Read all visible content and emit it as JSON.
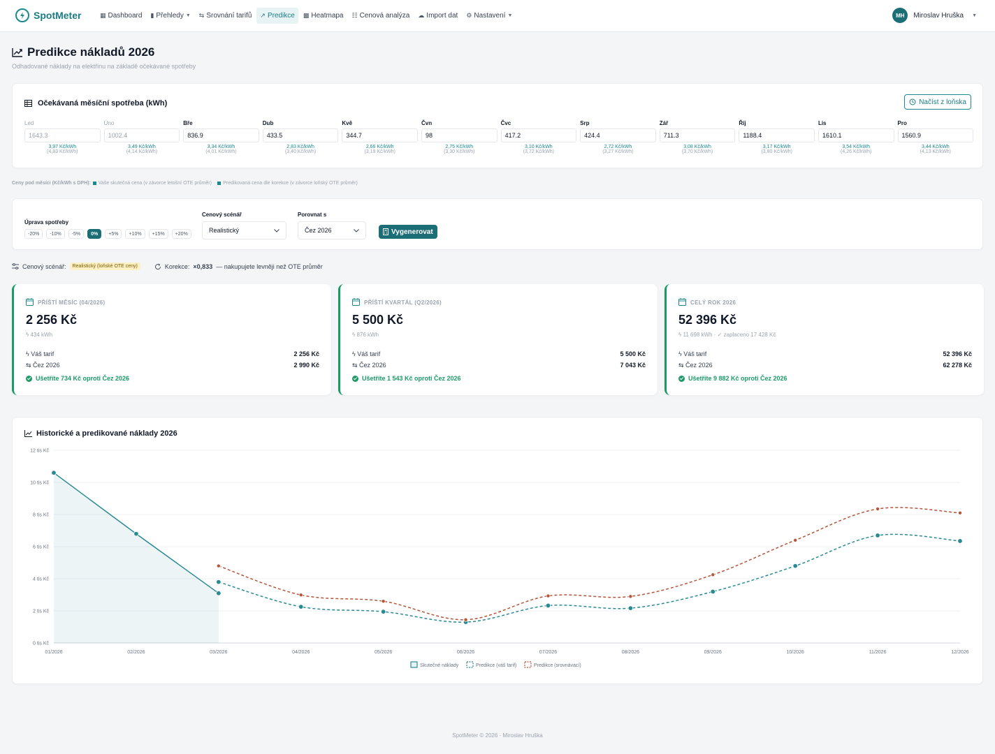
{
  "app": {
    "name": "SpotMeter"
  },
  "nav": {
    "items": [
      {
        "label": "Dashboard",
        "icon": "dashboard-icon",
        "glyph": "▦",
        "active": false,
        "dropdown": false
      },
      {
        "label": "Přehledy",
        "icon": "bar-chart-icon",
        "glyph": "▮",
        "active": false,
        "dropdown": true
      },
      {
        "label": "Srovnání tarifů",
        "icon": "compare-icon",
        "glyph": "⇆",
        "active": false,
        "dropdown": false
      },
      {
        "label": "Predikce",
        "icon": "trend-icon",
        "glyph": "↗",
        "active": true,
        "dropdown": false
      },
      {
        "label": "Heatmapa",
        "icon": "grid-icon",
        "glyph": "▩",
        "active": false,
        "dropdown": false
      },
      {
        "label": "Cenová analýza",
        "icon": "analysis-icon",
        "glyph": "☷",
        "active": false,
        "dropdown": false
      },
      {
        "label": "Import dat",
        "icon": "cloud-upload-icon",
        "glyph": "☁",
        "active": false,
        "dropdown": false
      },
      {
        "label": "Nastavení",
        "icon": "gear-icon",
        "glyph": "⚙",
        "active": false,
        "dropdown": true
      }
    ]
  },
  "user": {
    "initials": "MH",
    "name": "Miroslav Hruška"
  },
  "header": {
    "title": "Predikce nákladů 2026",
    "subtitle": "Odhadované náklady na elektřinu na základě očekávané spotřeby"
  },
  "consumption": {
    "title": "Očekávaná měsíční spotřeba (kWh)",
    "load_button": "Načíst z loňska",
    "months": [
      {
        "label": "Led",
        "value": "1643.3",
        "price": "3,97 Kč/kWh",
        "ote": "(4,83 Kč/kWh)",
        "past": true
      },
      {
        "label": "Úno",
        "value": "1002.4",
        "price": "3,49 Kč/kWh",
        "ote": "(4,14 Kč/kWh)",
        "past": true
      },
      {
        "label": "Bře",
        "value": "836.9",
        "price": "3,34 Kč/kWh",
        "ote": "(4,01 Kč/kWh)",
        "past": false
      },
      {
        "label": "Dub",
        "value": "433.5",
        "price": "2,83 Kč/kWh",
        "ote": "(3,40 Kč/kWh)",
        "past": false
      },
      {
        "label": "Kvě",
        "value": "344.7",
        "price": "2,66 Kč/kWh",
        "ote": "(3,19 Kč/kWh)",
        "past": false
      },
      {
        "label": "Čvn",
        "value": "98",
        "price": "2,75 Kč/kWh",
        "ote": "(3,30 Kč/kWh)",
        "past": false
      },
      {
        "label": "Čvc",
        "value": "417.2",
        "price": "3,10 Kč/kWh",
        "ote": "(3,72 Kč/kWh)",
        "past": false
      },
      {
        "label": "Srp",
        "value": "424.4",
        "price": "2,72 Kč/kWh",
        "ote": "(3,27 Kč/kWh)",
        "past": false
      },
      {
        "label": "Zář",
        "value": "711.3",
        "price": "3,08 Kč/kWh",
        "ote": "(3,70 Kč/kWh)",
        "past": false
      },
      {
        "label": "Říj",
        "value": "1188.4",
        "price": "3,17 Kč/kWh",
        "ote": "(3,80 Kč/kWh)",
        "past": false
      },
      {
        "label": "Lis",
        "value": "1610.1",
        "price": "3,54 Kč/kWh",
        "ote": "(4,26 Kč/kWh)",
        "past": false
      },
      {
        "label": "Pro",
        "value": "1560.9",
        "price": "3,44 Kč/kWh",
        "ote": "(4,13 Kč/kWh)",
        "past": false
      }
    ]
  },
  "price_legend": {
    "prefix": "Ceny pod měsíci (Kč/kWh s DPH):",
    "actual": "Vaše skutečná cena (v závorce letošní OTE průměr)",
    "separator": "·",
    "predicted": "Predikovaná cena dle korekce (v závorce loňský OTE průměr)"
  },
  "controls": {
    "adjust_label": "Úprava spotřeby",
    "adjust_options": [
      "-20%",
      "-10%",
      "-5%",
      "0%",
      "+5%",
      "+10%",
      "+15%",
      "+20%"
    ],
    "adjust_active": "0%",
    "scenario_label": "Cenový scénář",
    "scenario_value": "Realistický",
    "compare_label": "Porovnat s",
    "compare_value": "Čez 2026",
    "generate_button": "Vygenerovat"
  },
  "scenario_info": {
    "label": "Cenový scénář:",
    "badge": "Realistický (loňské OTE ceny)",
    "correction_label": "Korekce:",
    "correction_value": "×0,833",
    "correction_text": "— nakupujete levněji než OTE průměr"
  },
  "stats": [
    {
      "heading": "PŘÍŠTÍ MĚSÍC (04/2026)",
      "value": "2 256 Kč",
      "kwh": "434 kWh",
      "extra": "",
      "tariff_label": "Váš tarif",
      "tariff_value": "2 256 Kč",
      "compare_label": "Čez 2026",
      "compare_value": "2 990 Kč",
      "saving": "Ušetříte 734 Kč oproti Čez 2026"
    },
    {
      "heading": "PŘÍŠTÍ KVARTÁL (Q2/2026)",
      "value": "5 500 Kč",
      "kwh": "876 kWh",
      "extra": "",
      "tariff_label": "Váš tarif",
      "tariff_value": "5 500 Kč",
      "compare_label": "Čez 2026",
      "compare_value": "7 043 Kč",
      "saving": "Ušetříte 1 543 Kč oproti Čez 2026"
    },
    {
      "heading": "CELÝ ROK 2026",
      "value": "52 396 Kč",
      "kwh": "11 698 kWh ·",
      "extra": "zaplaceno 17 428 Kč",
      "tariff_label": "Váš tarif",
      "tariff_value": "52 396 Kč",
      "compare_label": "Čez 2026",
      "compare_value": "62 278 Kč",
      "saving": "Ušetříte 9 882 Kč oproti Čez 2026"
    }
  ],
  "chart_title": "Historické a predikované náklady 2026",
  "chart_data": {
    "type": "line",
    "title": "Historické a predikované náklady 2026",
    "categories": [
      "01/2026",
      "02/2026",
      "03/2026",
      "04/2026",
      "05/2026",
      "06/2026",
      "07/2026",
      "08/2026",
      "09/2026",
      "10/2026",
      "11/2026",
      "12/2026"
    ],
    "y_ticks": [
      "0 tis Kč",
      "2 tis Kč",
      "4 tis Kč",
      "6 tis Kč",
      "8 tis Kč",
      "10 tis Kč",
      "12 tis Kč"
    ],
    "ylim": [
      0,
      12000
    ],
    "grid": true,
    "legend_position": "bottom",
    "series": [
      {
        "name": "Skutečné náklady",
        "color": "#2a8a92",
        "style": "solid-area",
        "values": [
          10600,
          6800,
          3100,
          null,
          null,
          null,
          null,
          null,
          null,
          null,
          null,
          null
        ]
      },
      {
        "name": "Predikce (váš tarif)",
        "color": "#2a8a92",
        "style": "dashed",
        "values": [
          null,
          null,
          3800,
          2256,
          1950,
          1300,
          2330,
          2170,
          3200,
          4800,
          6700,
          6350
        ]
      },
      {
        "name": "Predikce (srovnávací)",
        "color": "#b5553a",
        "style": "dashed",
        "values": [
          null,
          null,
          4800,
          2990,
          2600,
          1450,
          2930,
          2900,
          4250,
          6400,
          8350,
          8100
        ]
      }
    ]
  },
  "footer": "SpotMeter © 2026 · Miroslav Hruška"
}
